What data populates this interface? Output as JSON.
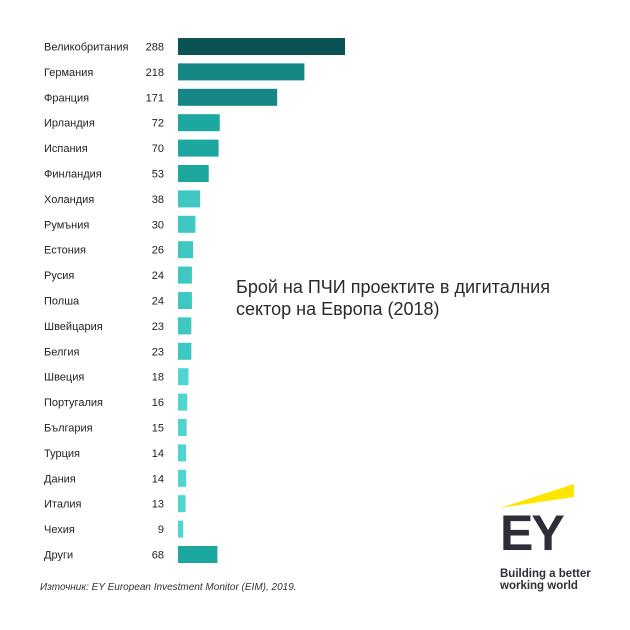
{
  "chart_data": {
    "type": "bar",
    "orientation": "horizontal",
    "title": "Брой на ПЧИ проектите в дигиталния сектор на Европа (2018)",
    "categories": [
      "Великобритания",
      "Германия",
      "Франция",
      "Ирландия",
      "Испания",
      "Финландия",
      "Холандия",
      "Румъния",
      "Естония",
      "Русия",
      "Полша",
      "Швейцария",
      "Белгия",
      "Швеция",
      "Португалия",
      "България",
      "Турция",
      "Дания",
      "Италия",
      "Чехия",
      "Други"
    ],
    "values": [
      288,
      218,
      171,
      72,
      70,
      53,
      38,
      30,
      26,
      24,
      24,
      23,
      23,
      18,
      16,
      15,
      14,
      14,
      13,
      9,
      68
    ],
    "value_labels": [
      "288",
      "218",
      "171",
      "72",
      "70",
      "53",
      "38",
      "30",
      "26",
      "24",
      "24",
      "23",
      "23",
      "18",
      "16",
      "15",
      "14",
      "14",
      "13",
      "9",
      "68"
    ],
    "xlim": [
      0,
      288
    ],
    "grid": false,
    "legend": "none",
    "colors": {
      "dark": "#0b5352",
      "mid": "#168784",
      "teal": "#1da89f",
      "light": "#3ec8c1",
      "lightest": "#51d4cd"
    }
  },
  "source": "Източник: EY European Investment Monitor (EIM), 2019.",
  "logo": {
    "letters": "EY",
    "tagline_line1": "Building a better",
    "tagline_line2": "working world",
    "beam_color": "#ffe600",
    "text_color": "#2e2e38"
  }
}
